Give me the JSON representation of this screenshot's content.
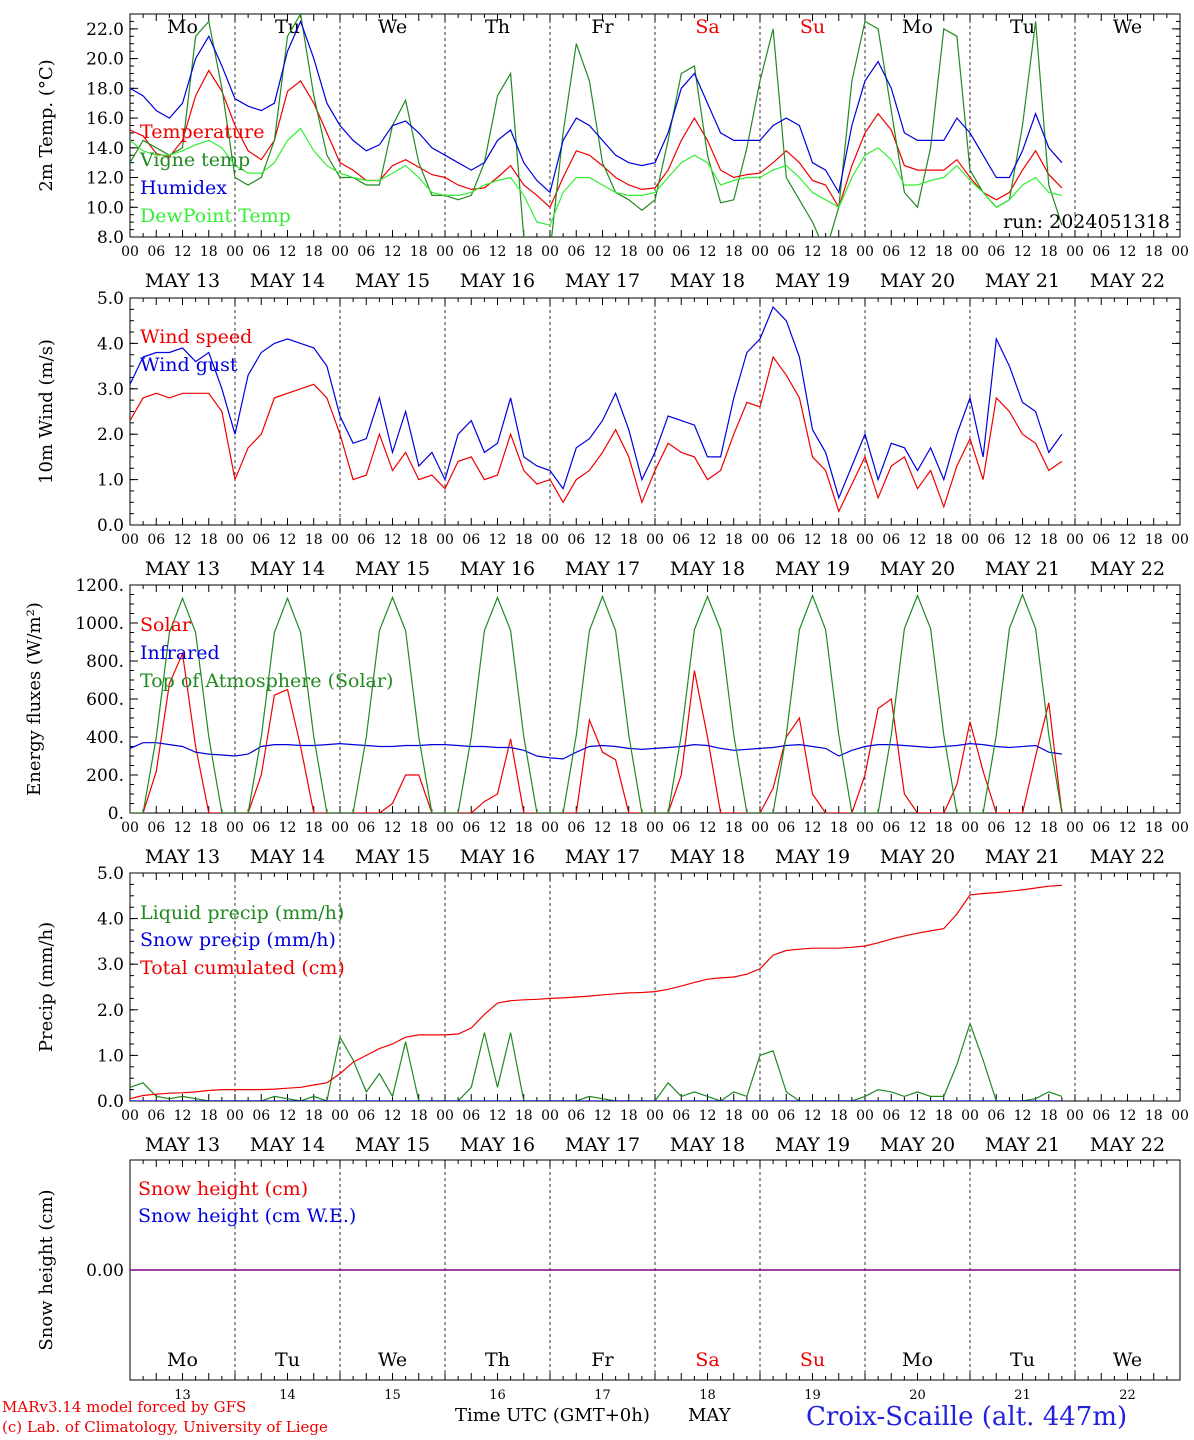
{
  "footer": {
    "credit_line1": "MARv3.14 model forced by GFS",
    "credit_line2": "(c) Lab. of Climatology, University of Liege",
    "xlabel": "Time UTC (GMT+0h)",
    "month": "MAY",
    "station": "Croix-Scaille (alt. 447m)"
  },
  "run_label": "run: 2024051318",
  "days": {
    "weekdays": [
      "Mo",
      "Tu",
      "We",
      "Th",
      "Fr",
      "Sa",
      "Su",
      "Mo",
      "Tu",
      "We"
    ],
    "weekend_flags": [
      false,
      false,
      false,
      false,
      false,
      true,
      true,
      false,
      false,
      false
    ],
    "dates": [
      "MAY 13",
      "MAY 14",
      "MAY 15",
      "MAY 16",
      "MAY 17",
      "MAY 18",
      "MAY 19",
      "MAY 20",
      "MAY 21",
      "MAY 22"
    ],
    "day_numbers": [
      "13",
      "14",
      "15",
      "16",
      "17",
      "18",
      "19",
      "20",
      "21",
      "22"
    ],
    "hour_ticks": [
      "00",
      "06",
      "12",
      "18"
    ],
    "final_tick": "00"
  },
  "colors": {
    "red": "#ee0000",
    "green": "#208a20",
    "blue": "#0000dd",
    "lightgreen": "#33ee33",
    "weekend": "#ee0000",
    "station": "#2222dd",
    "purple": "#800080"
  },
  "chart_data": [
    {
      "type": "line",
      "ylabel": "2m Temp. (°C)",
      "ylim": [
        8,
        23
      ],
      "yticks": [
        "8.0",
        "10.0",
        "12.0",
        "14.0",
        "16.0",
        "18.0",
        "20.0",
        "22.0"
      ],
      "x_hours_start": 0,
      "x_hours_step": 3,
      "legend": [
        "Temperature",
        "Vigne temp",
        "Humidex",
        "DewPoint Temp"
      ],
      "series": [
        {
          "name": "Temperature",
          "color": "red",
          "values": [
            15.2,
            14.8,
            13.6,
            13.4,
            14.5,
            17.5,
            19.2,
            17.8,
            15.5,
            13.8,
            13.2,
            14.5,
            17.8,
            18.5,
            17.0,
            15.0,
            13.0,
            12.5,
            11.8,
            11.8,
            12.8,
            13.2,
            12.7,
            12.2,
            12.0,
            11.5,
            11.2,
            11.3,
            12.0,
            12.8,
            11.5,
            10.8,
            10.0,
            12.0,
            13.8,
            13.5,
            12.8,
            12.0,
            11.5,
            11.2,
            11.3,
            12.5,
            14.5,
            16.0,
            14.5,
            12.5,
            12.0,
            12.2,
            12.3,
            13.0,
            13.8,
            13.0,
            11.8,
            11.5,
            10.0,
            12.8,
            15.0,
            16.3,
            15.2,
            12.8,
            12.5,
            12.5,
            12.5,
            13.2,
            12.0,
            11.0,
            10.5,
            11.0,
            12.5,
            13.8,
            12.2,
            11.3
          ]
        },
        {
          "name": "Vigne temp",
          "color": "green",
          "values": [
            13.0,
            14.5,
            14.0,
            13.5,
            14.0,
            21.5,
            22.5,
            18.0,
            12.0,
            11.5,
            12.0,
            14.5,
            21.5,
            23.0,
            17.5,
            13.5,
            12.0,
            12.0,
            11.5,
            11.5,
            15.5,
            17.2,
            13.0,
            10.8,
            10.8,
            10.5,
            10.8,
            13.0,
            17.5,
            19.0,
            8.0,
            7.5,
            7.0,
            15.0,
            21.0,
            18.5,
            13.0,
            11.0,
            10.5,
            9.8,
            10.5,
            14.5,
            19.0,
            19.5,
            13.5,
            10.3,
            10.5,
            14.0,
            18.5,
            22.0,
            12.0,
            10.5,
            9.0,
            7.0,
            10.0,
            18.5,
            22.5,
            22.0,
            16.5,
            11.0,
            10.0,
            14.0,
            22.0,
            21.5,
            12.5,
            11.0,
            10.0,
            10.5,
            15.5,
            22.5,
            11.5,
            8.8
          ]
        },
        {
          "name": "Humidex",
          "color": "blue",
          "values": [
            18.0,
            17.5,
            16.5,
            16.0,
            17.0,
            20.0,
            21.5,
            19.5,
            17.3,
            16.8,
            16.5,
            17.0,
            20.5,
            22.5,
            20.0,
            17.0,
            15.5,
            14.5,
            13.8,
            14.2,
            15.5,
            15.8,
            15.0,
            14.0,
            13.5,
            13.0,
            12.5,
            13.0,
            14.5,
            15.2,
            13.0,
            11.8,
            11.0,
            14.5,
            16.0,
            15.5,
            14.5,
            13.5,
            13.0,
            12.8,
            13.0,
            15.0,
            18.0,
            19.0,
            17.0,
            15.0,
            14.5,
            14.5,
            14.5,
            15.5,
            16.0,
            15.5,
            13.0,
            12.5,
            11.0,
            15.5,
            18.5,
            19.8,
            18.0,
            15.0,
            14.5,
            14.5,
            14.5,
            16.0,
            15.0,
            13.5,
            12.0,
            12.0,
            13.8,
            16.3,
            14.0,
            13.0
          ]
        },
        {
          "name": "DewPoint Temp",
          "color": "lightgreen",
          "values": [
            14.5,
            13.8,
            13.5,
            13.5,
            13.8,
            14.2,
            14.5,
            14.0,
            12.8,
            12.3,
            12.3,
            13.0,
            14.5,
            15.3,
            13.8,
            12.8,
            12.3,
            12.0,
            11.8,
            11.8,
            12.3,
            12.8,
            12.0,
            11.0,
            10.8,
            10.8,
            11.0,
            11.5,
            11.8,
            12.0,
            10.8,
            9.0,
            8.8,
            11.0,
            12.0,
            12.0,
            11.5,
            11.0,
            10.8,
            10.8,
            11.0,
            12.0,
            13.0,
            13.5,
            13.0,
            11.5,
            11.8,
            12.0,
            12.0,
            12.5,
            12.8,
            12.0,
            11.0,
            10.5,
            10.0,
            12.0,
            13.5,
            14.0,
            13.2,
            11.5,
            11.5,
            11.8,
            12.0,
            12.8,
            11.8,
            11.0,
            10.0,
            10.5,
            11.5,
            12.0,
            11.0,
            10.8
          ]
        }
      ]
    },
    {
      "type": "line",
      "ylabel": "10m Wind (m/s)",
      "ylim": [
        0,
        5
      ],
      "yticks": [
        "0.0",
        "1.0",
        "2.0",
        "3.0",
        "4.0",
        "5.0"
      ],
      "x_hours_start": 0,
      "x_hours_step": 3,
      "legend": [
        "Wind speed",
        "Wind gust"
      ],
      "series": [
        {
          "name": "Wind speed",
          "color": "red",
          "values": [
            2.3,
            2.8,
            2.9,
            2.8,
            2.9,
            2.9,
            2.9,
            2.5,
            1.0,
            1.7,
            2.0,
            2.8,
            2.9,
            3.0,
            3.1,
            2.8,
            2.0,
            1.0,
            1.1,
            2.0,
            1.2,
            1.6,
            1.0,
            1.1,
            0.8,
            1.4,
            1.5,
            1.0,
            1.1,
            2.0,
            1.2,
            0.9,
            1.0,
            0.5,
            1.0,
            1.2,
            1.6,
            2.1,
            1.5,
            0.5,
            1.2,
            1.8,
            1.6,
            1.5,
            1.0,
            1.2,
            2.0,
            2.7,
            2.6,
            3.7,
            3.3,
            2.8,
            1.5,
            1.2,
            0.3,
            0.9,
            1.5,
            0.6,
            1.3,
            1.5,
            0.8,
            1.2,
            0.4,
            1.3,
            1.9,
            1.0,
            2.8,
            2.5,
            2.0,
            1.8,
            1.2,
            1.4
          ]
        },
        {
          "name": "Wind gust",
          "color": "blue",
          "values": [
            3.1,
            3.7,
            3.8,
            3.8,
            3.9,
            3.6,
            3.8,
            3.0,
            2.0,
            3.3,
            3.8,
            4.0,
            4.1,
            4.0,
            3.9,
            3.5,
            2.4,
            1.8,
            1.9,
            2.8,
            1.6,
            2.5,
            1.3,
            1.6,
            1.0,
            2.0,
            2.3,
            1.6,
            1.8,
            2.8,
            1.5,
            1.3,
            1.2,
            0.8,
            1.7,
            1.9,
            2.3,
            2.9,
            2.1,
            1.0,
            1.6,
            2.4,
            2.3,
            2.2,
            1.5,
            1.5,
            2.8,
            3.8,
            4.1,
            4.8,
            4.5,
            3.7,
            2.1,
            1.6,
            0.6,
            1.3,
            2.0,
            1.0,
            1.8,
            1.7,
            1.2,
            1.7,
            1.0,
            2.0,
            2.8,
            1.5,
            4.1,
            3.5,
            2.7,
            2.5,
            1.6,
            2.0
          ]
        }
      ]
    },
    {
      "type": "line",
      "ylabel": "Energy fluxes (W/m²)",
      "ylim": [
        0,
        1200
      ],
      "yticks": [
        "0.",
        "200.",
        "400.",
        "600.",
        "800.",
        "1000.",
        "1200."
      ],
      "x_hours_start": 0,
      "x_hours_step": 3,
      "legend": [
        "Solar",
        "Infrared",
        "Top of Atmosphere (Solar)"
      ],
      "series": [
        {
          "name": "Solar",
          "color": "red",
          "values": [
            0,
            0,
            220,
            680,
            840,
            350,
            0,
            0,
            0,
            0,
            200,
            620,
            650,
            350,
            0,
            0,
            0,
            0,
            0,
            0,
            50,
            200,
            200,
            0,
            0,
            0,
            0,
            60,
            100,
            390,
            0,
            0,
            0,
            0,
            0,
            490,
            320,
            280,
            0,
            0,
            0,
            0,
            200,
            750,
            400,
            0,
            0,
            0,
            0,
            130,
            400,
            500,
            100,
            0,
            0,
            0,
            200,
            550,
            600,
            100,
            0,
            0,
            0,
            150,
            480,
            220,
            0,
            0,
            0,
            300,
            580,
            0
          ]
        },
        {
          "name": "Infrared",
          "color": "blue",
          "values": [
            340,
            370,
            370,
            360,
            350,
            320,
            310,
            305,
            300,
            310,
            350,
            360,
            360,
            355,
            355,
            360,
            365,
            360,
            355,
            350,
            350,
            355,
            355,
            360,
            360,
            355,
            350,
            350,
            345,
            345,
            330,
            300,
            290,
            285,
            320,
            350,
            355,
            350,
            340,
            335,
            340,
            345,
            350,
            360,
            355,
            340,
            330,
            335,
            340,
            345,
            355,
            360,
            350,
            340,
            300,
            330,
            350,
            360,
            360,
            355,
            350,
            345,
            350,
            355,
            365,
            360,
            350,
            345,
            350,
            355,
            320,
            310
          ]
        },
        {
          "name": "Top of Atmosphere (Solar)",
          "color": "green",
          "values": [
            0,
            0,
            400,
            950,
            1130,
            950,
            400,
            0,
            0,
            0,
            400,
            950,
            1130,
            950,
            400,
            0,
            0,
            0,
            400,
            960,
            1135,
            960,
            400,
            0,
            0,
            0,
            400,
            960,
            1135,
            960,
            400,
            0,
            0,
            0,
            410,
            960,
            1140,
            960,
            410,
            0,
            0,
            0,
            410,
            965,
            1140,
            965,
            410,
            0,
            0,
            0,
            410,
            965,
            1145,
            965,
            410,
            0,
            0,
            0,
            410,
            970,
            1145,
            970,
            410,
            0,
            0,
            0,
            410,
            970,
            1150,
            970,
            410,
            0
          ]
        }
      ]
    },
    {
      "type": "line",
      "ylabel": "Precip (mm/h)",
      "ylim": [
        0,
        5
      ],
      "yticks": [
        "0.0",
        "1.0",
        "2.0",
        "3.0",
        "4.0",
        "5.0"
      ],
      "x_hours_start": 0,
      "x_hours_step": 3,
      "legend": [
        "Liquid precip (mm/h)",
        "Snow precip (mm/h)",
        "Total cumulated (cm)"
      ],
      "series": [
        {
          "name": "Liquid precip (mm/h)",
          "color": "green",
          "values": [
            0.3,
            0.4,
            0.1,
            0.05,
            0.1,
            0.05,
            0.0,
            0.0,
            0.0,
            0.0,
            0.0,
            0.1,
            0.05,
            0.0,
            0.1,
            0.0,
            1.4,
            0.9,
            0.2,
            0.6,
            0.1,
            1.3,
            0.0,
            0.0,
            0.0,
            0.0,
            0.3,
            1.5,
            0.3,
            1.5,
            0.0,
            0.0,
            0.0,
            0.0,
            0.0,
            0.1,
            0.05,
            0.0,
            0.0,
            0.0,
            0.0,
            0.4,
            0.1,
            0.2,
            0.1,
            0.0,
            0.2,
            0.1,
            1.0,
            1.1,
            0.2,
            0.0,
            0.0,
            0.0,
            0.0,
            0.0,
            0.1,
            0.25,
            0.2,
            0.1,
            0.2,
            0.1,
            0.1,
            0.8,
            1.7,
            0.9,
            0.0,
            0.0,
            0.0,
            0.05,
            0.2,
            0.1
          ]
        },
        {
          "name": "Snow precip (mm/h)",
          "color": "blue",
          "values": [
            0,
            0,
            0,
            0,
            0,
            0,
            0,
            0,
            0,
            0,
            0,
            0,
            0,
            0,
            0,
            0,
            0,
            0,
            0,
            0,
            0,
            0,
            0,
            0,
            0,
            0,
            0,
            0,
            0,
            0,
            0,
            0,
            0,
            0,
            0,
            0,
            0,
            0,
            0,
            0,
            0,
            0,
            0,
            0,
            0,
            0,
            0,
            0,
            0,
            0,
            0,
            0,
            0,
            0,
            0,
            0,
            0,
            0,
            0,
            0,
            0,
            0,
            0,
            0,
            0,
            0,
            0,
            0,
            0,
            0,
            0,
            0
          ]
        },
        {
          "name": "Total cumulated (cm)",
          "color": "red",
          "values": [
            0.05,
            0.12,
            0.15,
            0.17,
            0.18,
            0.2,
            0.23,
            0.25,
            0.25,
            0.25,
            0.25,
            0.26,
            0.28,
            0.3,
            0.35,
            0.4,
            0.6,
            0.85,
            1.0,
            1.15,
            1.25,
            1.4,
            1.45,
            1.45,
            1.45,
            1.47,
            1.6,
            1.9,
            2.15,
            2.2,
            2.22,
            2.23,
            2.25,
            2.26,
            2.28,
            2.3,
            2.33,
            2.35,
            2.37,
            2.38,
            2.4,
            2.45,
            2.52,
            2.6,
            2.67,
            2.7,
            2.72,
            2.78,
            2.9,
            3.2,
            3.3,
            3.33,
            3.35,
            3.35,
            3.35,
            3.37,
            3.4,
            3.47,
            3.55,
            3.62,
            3.68,
            3.73,
            3.78,
            4.1,
            4.52,
            4.55,
            4.57,
            4.6,
            4.63,
            4.67,
            4.71,
            4.73
          ]
        }
      ]
    },
    {
      "type": "line",
      "ylabel": "Snow height (cm)",
      "ylim": [
        -1,
        1
      ],
      "yticks": [
        "0.00"
      ],
      "x_hours_start": 0,
      "x_hours_step": 3,
      "legend": [
        "Snow height (cm)",
        "Snow height (cm W.E.)"
      ],
      "series": [
        {
          "name": "Snow height (cm)",
          "color": "red",
          "values": [
            0,
            0
          ]
        },
        {
          "name": "Snow height (cm W.E.)",
          "color": "blue",
          "values": [
            0,
            0
          ]
        }
      ]
    }
  ]
}
